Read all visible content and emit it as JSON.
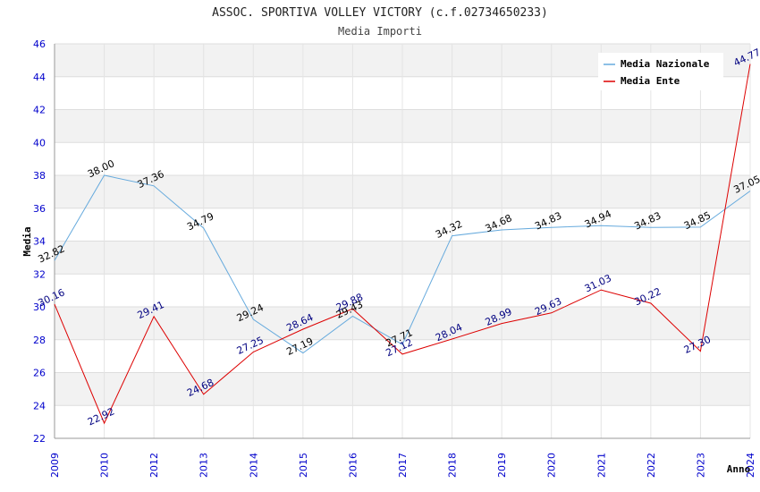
{
  "chart_data": {
    "type": "line",
    "title": "ASSOC. SPORTIVA VOLLEY VICTORY (c.f.02734650233)",
    "subtitle": "Media Importi",
    "xlabel": "Anno",
    "ylabel": "Media",
    "ylim": [
      22,
      46
    ],
    "yticks": [
      "22",
      "24",
      "26",
      "28",
      "30",
      "32",
      "34",
      "36",
      "38",
      "40",
      "42",
      "44",
      "46"
    ],
    "categories": [
      "2009",
      "2010",
      "2012",
      "2013",
      "2014",
      "2015",
      "2016",
      "2017",
      "2018",
      "2019",
      "2020",
      "2021",
      "2022",
      "2023",
      "2024"
    ],
    "series": [
      {
        "name": "Media Nazionale",
        "color": "#66aadd",
        "values": [
          32.82,
          38.0,
          37.36,
          34.79,
          29.24,
          27.19,
          29.43,
          27.71,
          34.32,
          34.68,
          34.83,
          34.94,
          34.83,
          34.85,
          37.05
        ],
        "labels": [
          "32.82",
          "38.00",
          "37.36",
          "34.79",
          "29.24",
          "27.19",
          "29.43",
          "27.71",
          "34.32",
          "34.68",
          "34.83",
          "34.94",
          "34.83",
          "34.85",
          "37.05"
        ]
      },
      {
        "name": "Media Ente",
        "color": "#dd0000",
        "values": [
          30.16,
          22.92,
          29.41,
          24.68,
          27.25,
          28.64,
          29.88,
          27.12,
          28.04,
          28.99,
          29.63,
          31.03,
          30.22,
          27.3,
          44.77
        ],
        "labels": [
          "30.16",
          "22.92",
          "29.41",
          "24.68",
          "27.25",
          "28.64",
          "29.88",
          "27.12",
          "28.04",
          "28.99",
          "29.63",
          "31.03",
          "30.22",
          "27.30",
          "44.77"
        ]
      }
    ],
    "legend_position": "top-right",
    "grid": true
  }
}
